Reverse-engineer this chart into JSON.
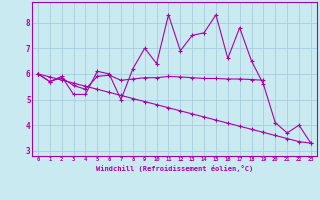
{
  "xlabel": "Windchill (Refroidissement éolien,°C)",
  "background_color": "#c8eaf0",
  "grid_color": "#a0c8d8",
  "line_color": "#aa00aa",
  "xlim": [
    -0.5,
    23.5
  ],
  "ylim": [
    2.8,
    8.8
  ],
  "xtick_labels": [
    "0",
    "1",
    "2",
    "3",
    "4",
    "5",
    "6",
    "7",
    "8",
    "9",
    "10",
    "11",
    "12",
    "13",
    "14",
    "15",
    "16",
    "17",
    "18",
    "19",
    "20",
    "21",
    "22",
    "23"
  ],
  "ytick_values": [
    3,
    4,
    5,
    6,
    7,
    8
  ],
  "series": [
    [
      6.0,
      5.7,
      5.9,
      5.2,
      5.2,
      6.1,
      6.0,
      5.0,
      6.2,
      7.0,
      6.4,
      8.3,
      6.9,
      7.5,
      7.6,
      8.3,
      6.6,
      7.8,
      6.5,
      5.6,
      4.1,
      3.7,
      4.0,
      3.3
    ],
    [
      6.0,
      5.7,
      5.85,
      5.55,
      5.4,
      5.9,
      5.95,
      5.75,
      5.8,
      5.85,
      5.85,
      5.9,
      5.88,
      5.85,
      5.82,
      5.82,
      5.8,
      5.8,
      5.78,
      5.75,
      null,
      null,
      null,
      null
    ],
    [
      6.0,
      5.88,
      5.76,
      5.64,
      5.52,
      5.4,
      5.28,
      5.16,
      5.04,
      4.92,
      4.8,
      4.68,
      4.56,
      4.44,
      4.32,
      4.2,
      4.08,
      3.96,
      3.84,
      3.72,
      3.6,
      3.48,
      3.36,
      3.3
    ]
  ]
}
